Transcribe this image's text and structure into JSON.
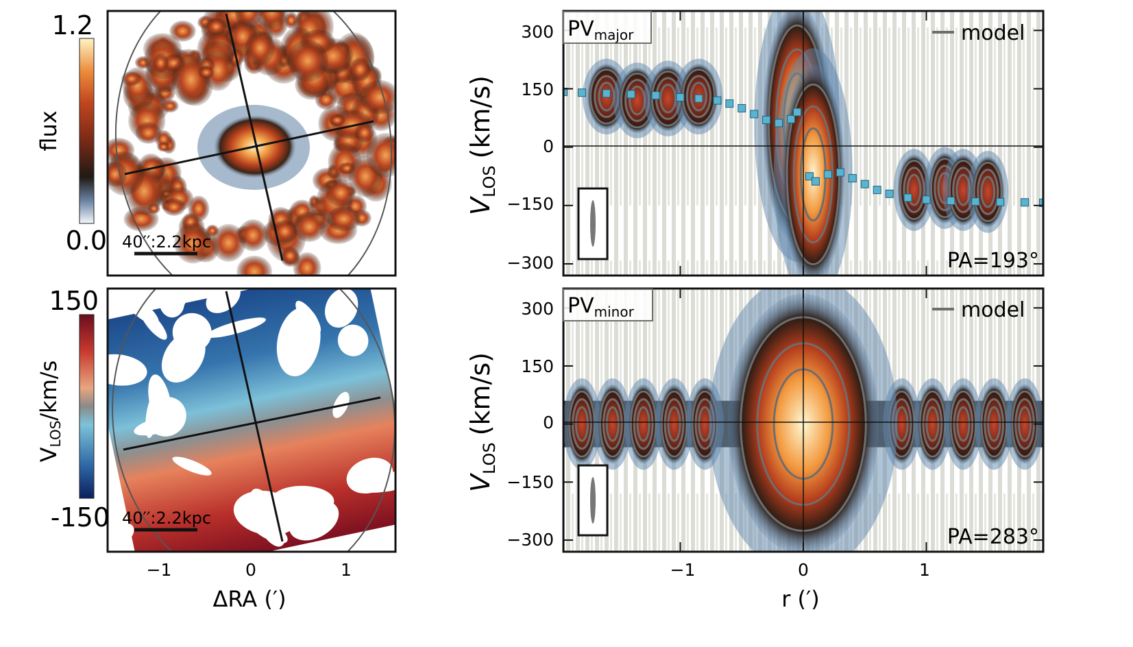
{
  "figure": {
    "panels": {
      "flux_map": {
        "colorbar_label": "flux",
        "colorbar_ticks": [
          "1.2",
          "0.0"
        ],
        "scale_bar": "40′′:2.2kpc"
      },
      "velocity_map": {
        "colorbar_label_main": "V",
        "colorbar_label_sub": "LOS",
        "colorbar_label_tail": "/km/s",
        "colorbar_ticks": [
          "150",
          "-150"
        ],
        "scale_bar": "40′′:2.2kpc",
        "xlabel": "ΔRA (′)",
        "xticks": [
          "−1",
          "0",
          "1"
        ]
      },
      "pv_major": {
        "label_main": "PV",
        "label_sub": "major",
        "legend": "model",
        "pa": "PA=193°",
        "ylabel_main": "V",
        "ylabel_sub": "LOS",
        "ylabel_tail": "(km/s)",
        "yticks": [
          "300",
          "150",
          "0",
          "−150",
          "−300"
        ]
      },
      "pv_minor": {
        "label_main": "PV",
        "label_sub": "minor",
        "legend": "model",
        "pa": "PA=283°",
        "ylabel_main": "V",
        "ylabel_sub": "LOS",
        "ylabel_tail": "(km/s)",
        "yticks": [
          "300",
          "150",
          "0",
          "−150",
          "−300"
        ],
        "xlabel": "r (′)",
        "xticks": [
          "−1",
          "0",
          "1"
        ]
      }
    },
    "colors": {
      "rotation_curve": "#5ab4d0",
      "model_contour": "#6e6e6e",
      "background_noise": "#dcdcd6"
    }
  },
  "chart_data": [
    {
      "type": "heatmap",
      "title": "",
      "colorbar_label": "flux",
      "clim": [
        0.0,
        1.2
      ],
      "xlabel": "",
      "ylabel": "",
      "xlim": [
        -1.5,
        1.5
      ],
      "ylim": [
        -1.3,
        1.3
      ],
      "annotations": [
        "40′′:2.2kpc"
      ]
    },
    {
      "type": "heatmap",
      "title": "",
      "colorbar_label": "VLOS/km/s",
      "clim": [
        -150,
        150
      ],
      "xlabel": "ΔRA (′)",
      "xticks": [
        -1,
        0,
        1
      ],
      "xlim": [
        -1.5,
        1.5
      ],
      "ylim": [
        -1.3,
        1.3
      ],
      "annotations": [
        "40′′:2.2kpc"
      ]
    },
    {
      "type": "heatmap",
      "name_label": "PVmajor",
      "legend": [
        "model"
      ],
      "annotation": "PA=193°",
      "ylabel": "VLOS (km/s)",
      "yticks": [
        300,
        150,
        0,
        -150,
        -300
      ],
      "xlim": [
        -1.95,
        1.95
      ],
      "ylim": [
        -330,
        350
      ],
      "rotation_curve": {
        "x": [
          -1.95,
          -1.8,
          -1.6,
          -1.4,
          -1.2,
          -1.0,
          -0.85,
          -0.7,
          -0.6,
          -0.5,
          -0.4,
          -0.3,
          -0.2,
          -0.1,
          -0.05,
          0.05,
          0.1,
          0.2,
          0.3,
          0.4,
          0.5,
          0.6,
          0.7,
          0.85,
          1.0,
          1.2,
          1.4,
          1.6,
          1.8,
          1.95
        ],
        "y": [
          142,
          140,
          138,
          136,
          133,
          128,
          125,
          120,
          112,
          100,
          85,
          70,
          62,
          72,
          90,
          -75,
          -88,
          -70,
          -65,
          -80,
          -95,
          -110,
          -120,
          -130,
          -135,
          -138,
          -140,
          -141,
          -142,
          -143
        ]
      }
    },
    {
      "type": "heatmap",
      "name_label": "PVminor",
      "legend": [
        "model"
      ],
      "annotation": "PA=283°",
      "xlabel": "r (′)",
      "xticks": [
        -1,
        0,
        1
      ],
      "ylabel": "VLOS (km/s)",
      "yticks": [
        300,
        150,
        0,
        -150,
        -300
      ],
      "xlim": [
        -1.95,
        1.95
      ],
      "ylim": [
        -330,
        350
      ]
    }
  ]
}
